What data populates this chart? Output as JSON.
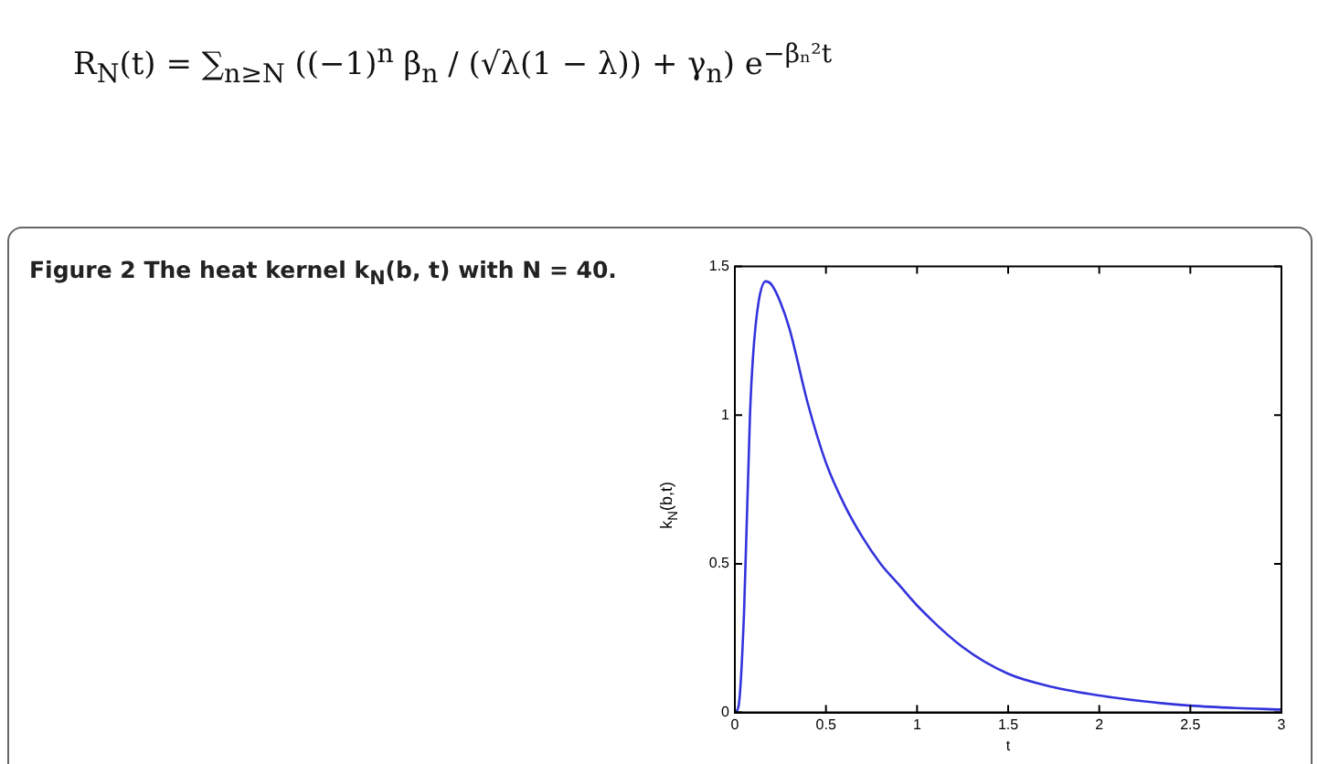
{
  "chart_data": {
    "type": "line",
    "title": "Figure 2  The heat kernel k$_{N}$(b, t) with N = 40.",
    "xlabel": "t",
    "ylabel": "k$_{N}$(b,t)",
    "annotations": [
      "R$_{N}$(t) = ∑$_{n≥N}$ ((−1)$^{n}$ β$_{n}$ / (√λ(1 − λ)) + γ$_{n}$) e$^{−βₙ²t}$"
    ],
    "x": [
      0,
      0.02,
      0.05,
      0.083,
      0.1,
      0.13,
      0.17,
      0.2,
      0.25,
      0.3,
      0.4,
      0.5,
      0.6,
      0.7,
      0.8,
      0.9,
      1,
      1.25,
      1.5,
      1.75,
      2,
      2.25,
      2.5,
      2.75,
      3
    ],
    "series": [
      {
        "color": "#3333dd",
        "values": [
          0,
          0.02,
          0.33,
          1.0,
          1.2,
          1.38,
          1.45,
          1.44,
          1.38,
          1.29,
          1.04,
          0.84,
          0.7,
          0.59,
          0.5,
          0.43,
          0.36,
          0.22,
          0.13,
          0.085,
          0.057,
          0.037,
          0.023,
          0.015,
          0.01
        ]
      }
    ],
    "xlim": [
      0,
      3
    ],
    "xticks": [
      0,
      0.5,
      1,
      1.5,
      2,
      2.5,
      3
    ],
    "ylim": [
      0,
      1.5
    ],
    "yticks": [
      0,
      0.5,
      1,
      1.5
    ],
    "grid": false,
    "legend": false,
    "marker": "none",
    "line_style": "solid"
  }
}
